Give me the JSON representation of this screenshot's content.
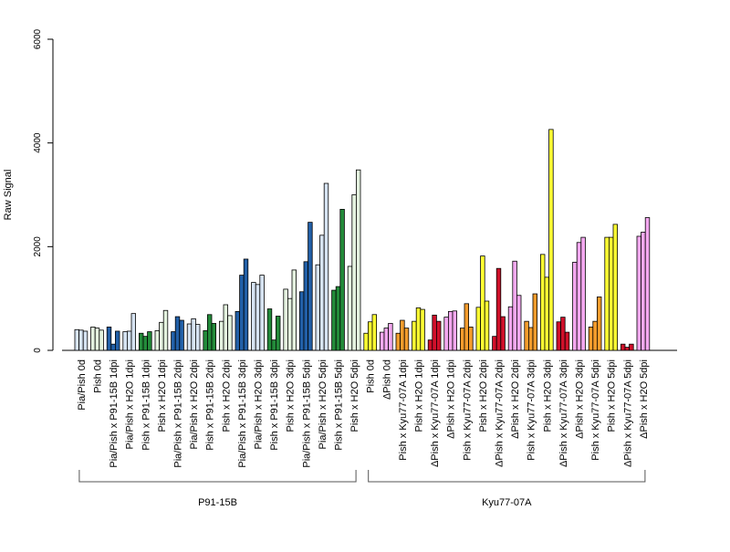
{
  "chart_data": {
    "type": "bar",
    "title": "",
    "ylabel": "Raw Signal",
    "xlabel": "",
    "ylim": [
      0,
      6000
    ],
    "yticks": [
      0,
      2000,
      4000,
      6000
    ],
    "grid": false,
    "legend": "none",
    "colors": {
      "pale_blue": "#d6e3f2",
      "pale_green": "#e4f3df",
      "dark_blue": "#2260a8",
      "dark_green": "#238b3a",
      "yellow": "#ffff33",
      "pink": "#f4a8f0",
      "orange": "#f49c2c",
      "red": "#d0102a",
      "outline": "#000000"
    },
    "categories": [
      "Pia/Pish 0d",
      "Pish 0d",
      "Pia/Pish x P91-15B 1dpi",
      "Pia/Pish x H2O 1dpi",
      "Pish x P91-15B 1dpi",
      "Pish x H2O 1dpi",
      "Pia/Pish x P91-15B 2dpi",
      "Pia/Pish x H2O 2dpi",
      "Pish x P91-15B 2dpi",
      "Pish x H2O 2dpi",
      "Pia/Pish x P91-15B 3dpi",
      "Pia/Pish x H2O 3dpi",
      "Pish x P91-15B 3dpi",
      "Pish x H2O 3dpi",
      "Pia/Pish x P91-15B 5dpi",
      "Pia/Pish x H2O 5dpi",
      "Pish x P91-15B 5dpi",
      "Pish x H2O 5dpi",
      "Pish 0d",
      "ΔPish 0d",
      "Pish x Kyu77-07A 1dpi",
      "Pish x H2O 1dpi",
      "ΔPish x Kyu77-07A 1dpi",
      "ΔPish x H2O 1dpi",
      "Pish x Kyu77-07A 2dpi",
      "Pish x H2O 2dpi",
      "ΔPish x Kyu77-07A 2dpi",
      "ΔPish x H2O 2dpi",
      "Pish x Kyu77-07A 3dpi",
      "Pish x H2O 3dpi",
      "ΔPish x Kyu77-07A 3dpi",
      "ΔPish x H2O 3dpi",
      "Pish x Kyu77-07A 5dpi",
      "Pish x H2O 5dpi",
      "ΔPish x Kyu77-07A 5dpi",
      "ΔPish x H2O 5dpi"
    ],
    "bar_colors": [
      "pale_blue",
      "pale_green",
      "dark_blue",
      "pale_blue",
      "dark_green",
      "pale_green",
      "dark_blue",
      "pale_blue",
      "dark_green",
      "pale_green",
      "dark_blue",
      "pale_blue",
      "dark_green",
      "pale_green",
      "dark_blue",
      "pale_blue",
      "dark_green",
      "pale_green",
      "yellow",
      "pink",
      "orange",
      "yellow",
      "red",
      "pink",
      "orange",
      "yellow",
      "red",
      "pink",
      "orange",
      "yellow",
      "red",
      "pink",
      "orange",
      "yellow",
      "red",
      "pink"
    ],
    "values": [
      [
        400,
        390,
        370
      ],
      [
        450,
        430,
        390
      ],
      [
        450,
        120,
        370
      ],
      [
        360,
        370,
        710
      ],
      [
        330,
        270,
        360
      ],
      [
        380,
        540,
        770
      ],
      [
        360,
        650,
        580
      ],
      [
        510,
        610,
        500
      ],
      [
        380,
        690,
        520
      ],
      [
        560,
        880,
        670
      ],
      [
        750,
        1450,
        1760
      ],
      [
        1310,
        1270,
        1450
      ],
      [
        800,
        200,
        660
      ],
      [
        1180,
        1000,
        1550
      ],
      [
        1130,
        1710,
        2470
      ],
      [
        1650,
        2220,
        3220
      ],
      [
        1160,
        1230,
        2720
      ],
      [
        1620,
        3000,
        3480
      ],
      [
        330,
        550,
        690
      ],
      [
        350,
        430,
        520
      ],
      [
        330,
        580,
        430
      ],
      [
        560,
        820,
        790
      ],
      [
        200,
        680,
        560
      ],
      [
        640,
        750,
        760
      ],
      [
        430,
        900,
        450
      ],
      [
        830,
        1820,
        950
      ],
      [
        270,
        1580,
        650
      ],
      [
        840,
        1720,
        1060
      ],
      [
        560,
        440,
        1090
      ],
      [
        1850,
        1410,
        4260
      ],
      [
        550,
        640,
        350
      ],
      [
        1700,
        2080,
        2180
      ],
      [
        450,
        560,
        1030
      ],
      [
        2180,
        2180,
        2430
      ],
      [
        120,
        60,
        120
      ],
      [
        2200,
        2280,
        2560
      ]
    ],
    "groups": [
      {
        "label": "P91-15B",
        "from": 0,
        "to": 17
      },
      {
        "label": "Kyu77-07A",
        "from": 18,
        "to": 35
      }
    ]
  }
}
